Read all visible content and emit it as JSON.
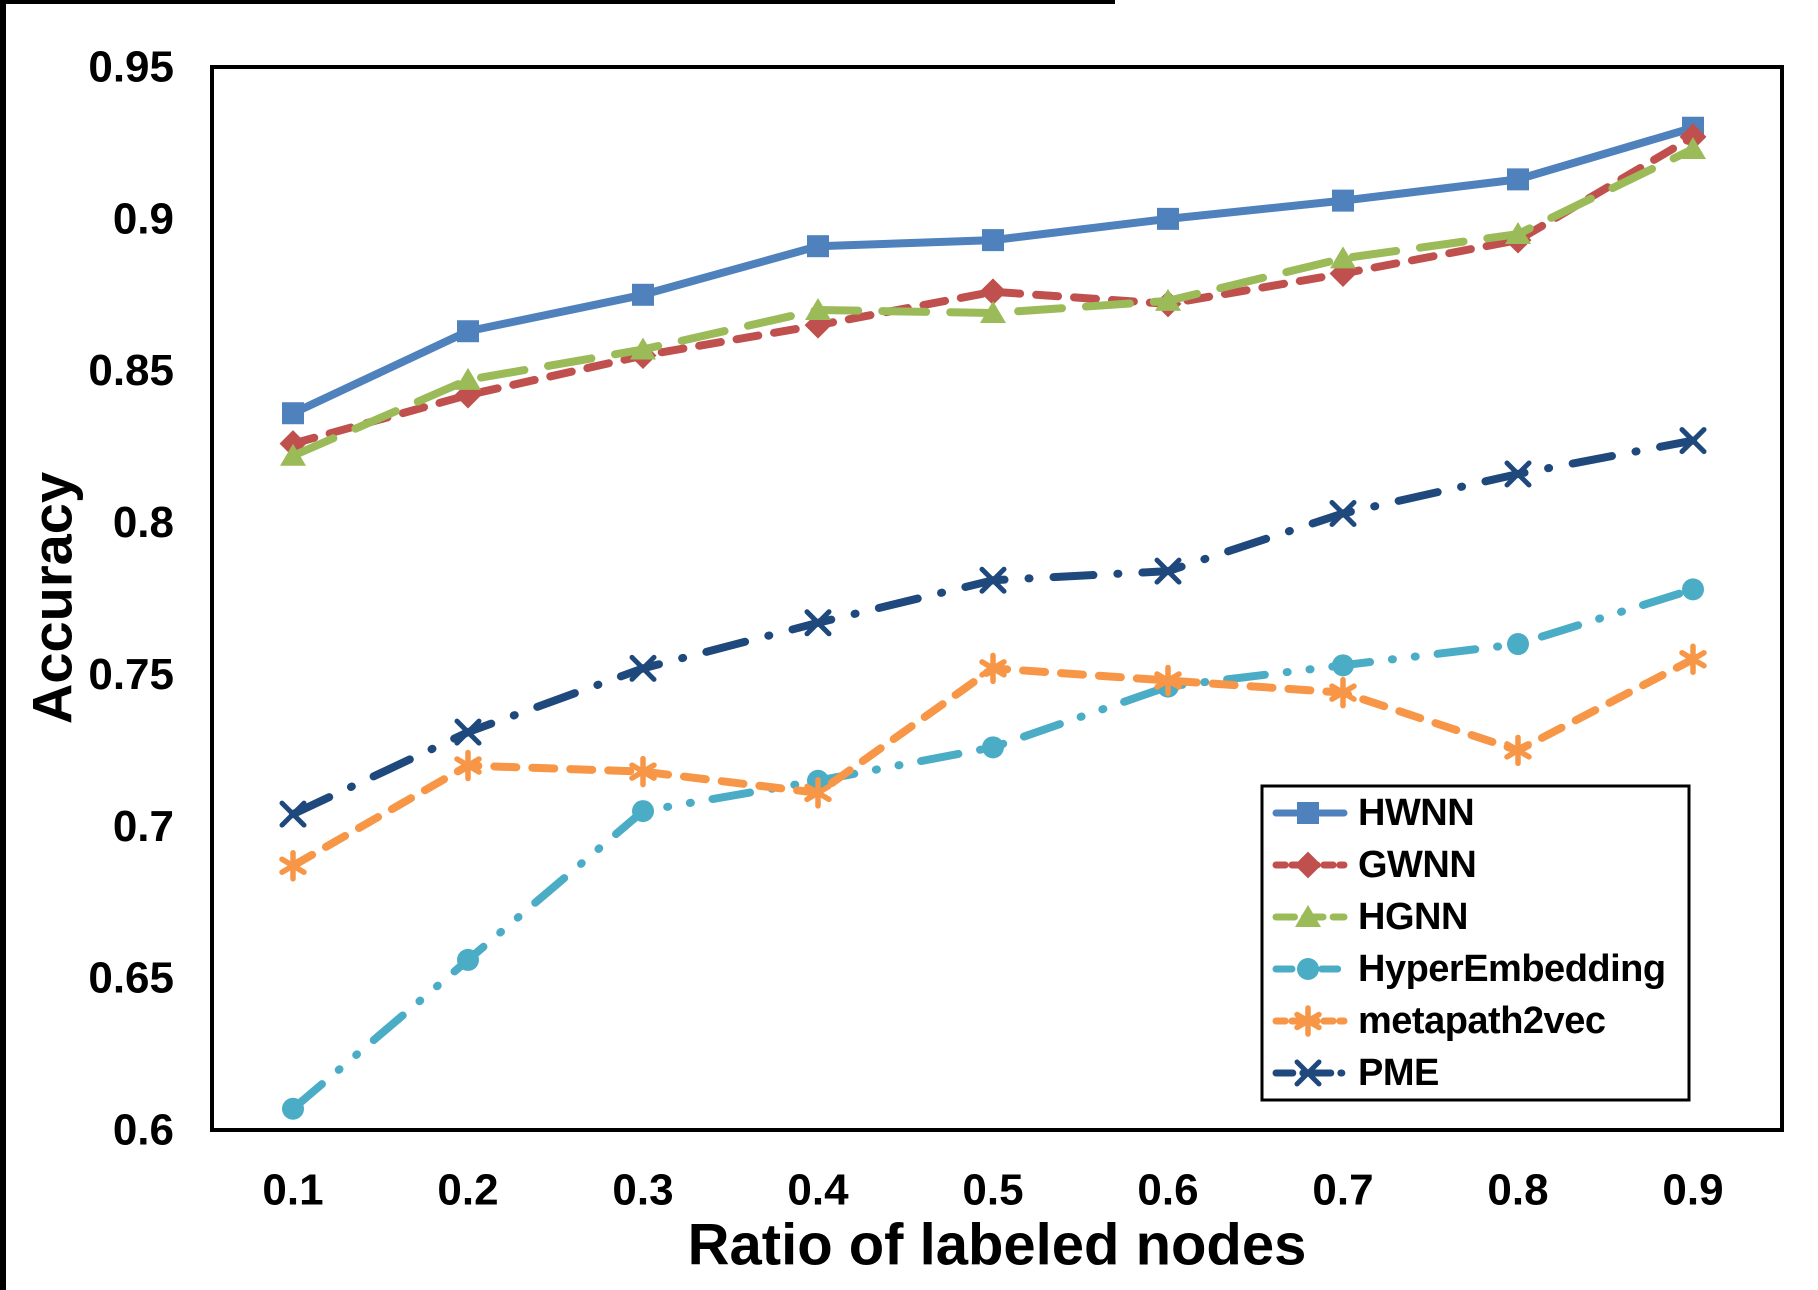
{
  "figure": {
    "background": "#ffffff",
    "frame_color": "#000000"
  },
  "chart_data": {
    "type": "line",
    "title": "",
    "xlabel": "Ratio of labeled nodes",
    "ylabel": "Accuracy",
    "x": [
      0.1,
      0.2,
      0.3,
      0.4,
      0.5,
      0.6,
      0.7,
      0.8,
      0.9
    ],
    "x_tick_labels": [
      "0.1",
      "0.2",
      "0.3",
      "0.4",
      "0.5",
      "0.6",
      "0.7",
      "0.8",
      "0.9"
    ],
    "y_ticks": [
      0.6,
      0.65,
      0.7,
      0.75,
      0.8,
      0.85,
      0.9,
      0.95
    ],
    "y_tick_labels": [
      "0.6",
      "0.65",
      "0.7",
      "0.75",
      "0.8",
      "0.85",
      "0.9",
      "0.95"
    ],
    "ylim": [
      0.6,
      0.95
    ],
    "grid": false,
    "legend_position": "inside-bottom-right",
    "series": [
      {
        "name": "HWNN",
        "color": "#4F81BD",
        "marker": "square",
        "line_style": "solid",
        "values": [
          0.836,
          0.863,
          0.875,
          0.891,
          0.893,
          0.9,
          0.906,
          0.913,
          0.93
        ]
      },
      {
        "name": "GWNN",
        "color": "#C0504D",
        "marker": "diamond",
        "line_style": "dashed",
        "values": [
          0.826,
          0.842,
          0.855,
          0.865,
          0.876,
          0.872,
          0.882,
          0.893,
          0.927
        ]
      },
      {
        "name": "HGNN",
        "color": "#9BBB59",
        "marker": "triangle",
        "line_style": "long-dash",
        "values": [
          0.822,
          0.847,
          0.857,
          0.87,
          0.869,
          0.873,
          0.887,
          0.895,
          0.923
        ]
      },
      {
        "name": "HyperEmbedding",
        "color": "#4BACC6",
        "marker": "circle",
        "line_style": "dash-dot-dot",
        "values": [
          0.607,
          0.656,
          0.705,
          0.715,
          0.726,
          0.746,
          0.753,
          0.76,
          0.778
        ]
      },
      {
        "name": "metapath2vec",
        "color": "#F79646",
        "marker": "asterisk",
        "line_style": "dashed",
        "values": [
          0.687,
          0.72,
          0.718,
          0.711,
          0.752,
          0.748,
          0.744,
          0.725,
          0.755
        ]
      },
      {
        "name": "PME",
        "color": "#1F497D",
        "marker": "x",
        "line_style": "dash-dot",
        "values": [
          0.704,
          0.731,
          0.752,
          0.767,
          0.781,
          0.784,
          0.803,
          0.816,
          0.827
        ]
      }
    ]
  }
}
